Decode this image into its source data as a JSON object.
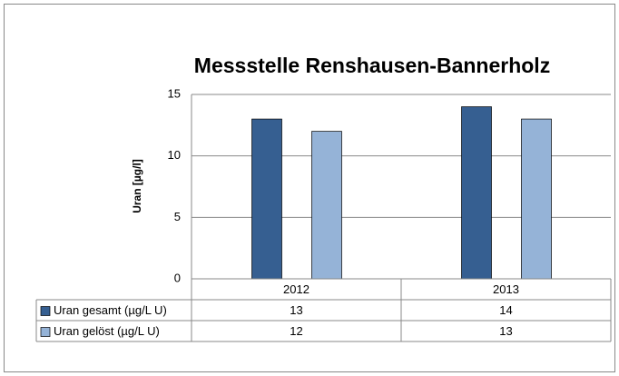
{
  "chart_data": {
    "type": "bar",
    "title": "Messstelle Renshausen-Bannerholz",
    "y_label": "Uran [µg/l]",
    "categories": [
      "2012",
      "2013"
    ],
    "series": [
      {
        "name": "Uran gesamt (µg/L U)",
        "color": "#365f91",
        "values": [
          13,
          14
        ]
      },
      {
        "name": "Uran gelöst (µg/L U)",
        "color": "#95b3d7",
        "values": [
          12,
          13
        ]
      }
    ],
    "ylim": [
      0,
      15
    ],
    "yticks": [
      0,
      5,
      10,
      15
    ],
    "grid": true,
    "data_table": true
  }
}
